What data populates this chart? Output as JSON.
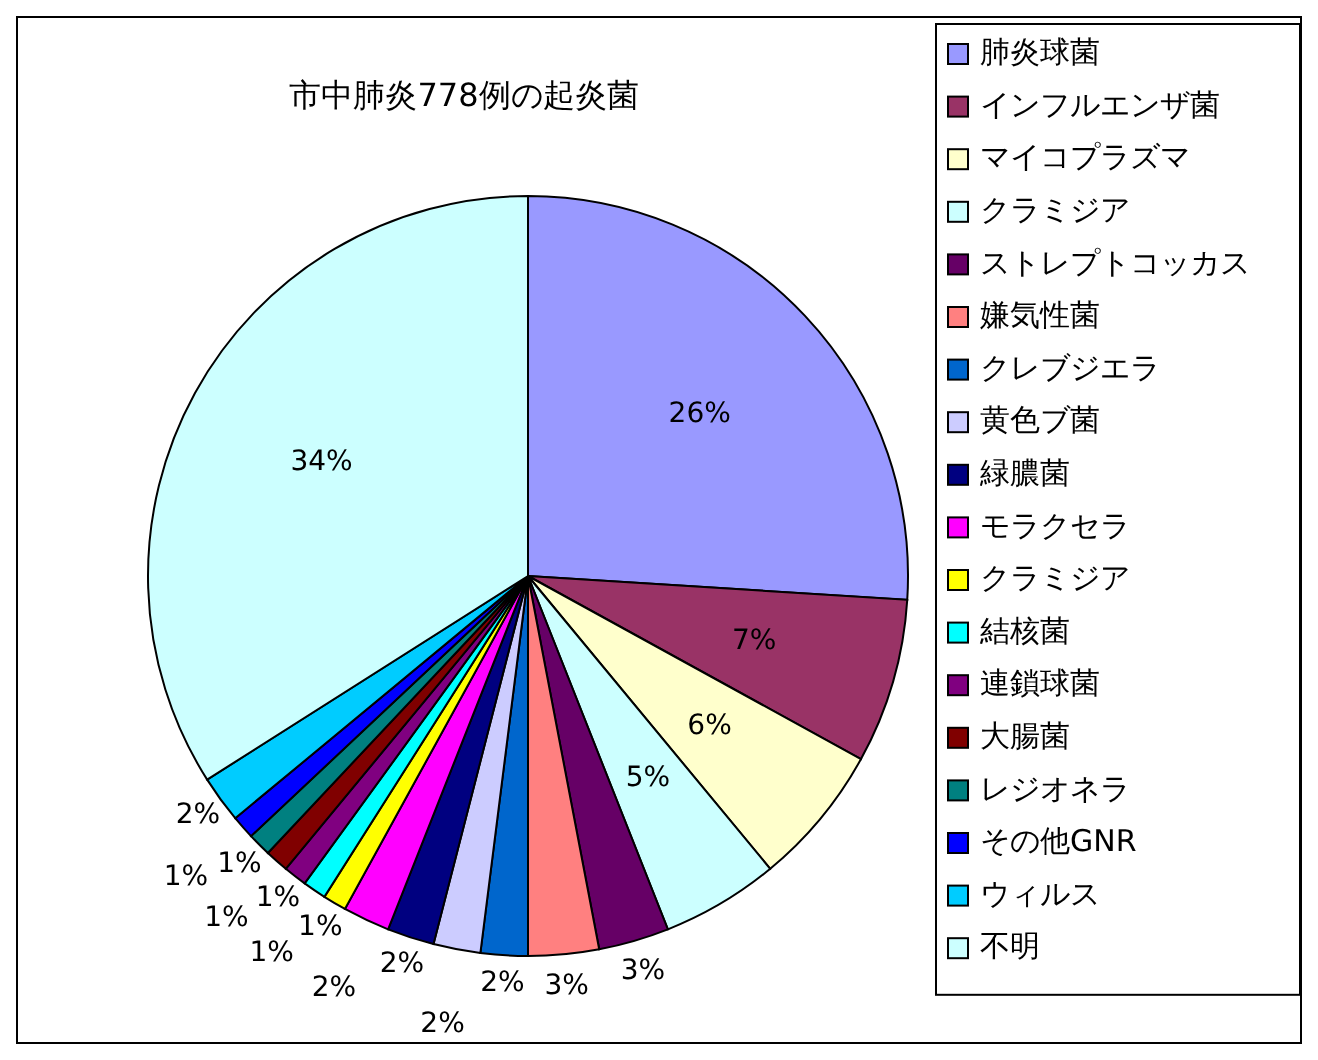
{
  "chart_data": {
    "type": "pie",
    "title": "市中肺炎778例の起炎菌",
    "categories": [
      "肺炎球菌",
      "インフルエンザ菌",
      "マイコプラズマ",
      "クラミジア",
      "ストレプトコッカス",
      "嫌気性菌",
      "クレブジエラ",
      "黄色ブ菌",
      "緑膿菌",
      "モラクセラ",
      "クラミジア",
      "結核菌",
      "連鎖球菌",
      "大腸菌",
      "レジオネラ",
      "その他GNR",
      "ウィルス",
      "不明"
    ],
    "values": [
      26,
      7,
      6,
      5,
      3,
      3,
      2,
      2,
      2,
      2,
      1,
      1,
      1,
      1,
      1,
      1,
      2,
      34
    ],
    "value_labels": [
      "26%",
      "7%",
      "6%",
      "5%",
      "3%",
      "3%",
      "2%",
      "2%",
      "2%",
      "2%",
      "1%",
      "1%",
      "1%",
      "1%",
      "1%",
      "1%",
      "2%",
      "34%"
    ],
    "colors": [
      "#9999ff",
      "#993366",
      "#ffffcc",
      "#ccffff",
      "#660066",
      "#ff8080",
      "#0066cc",
      "#ccccff",
      "#000080",
      "#ff00ff",
      "#ffff00",
      "#00ffff",
      "#800080",
      "#800000",
      "#008080",
      "#0000ff",
      "#00ccff",
      "#ccffff"
    ],
    "legend": "right"
  }
}
